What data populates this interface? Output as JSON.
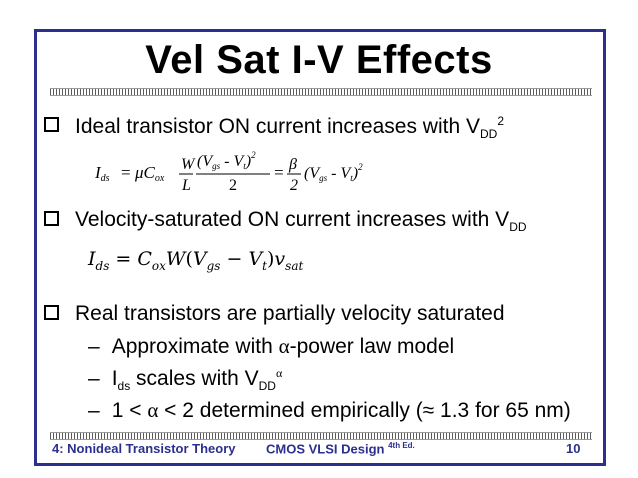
{
  "title": "Vel Sat I-V Effects",
  "bullets": [
    {
      "text": "Ideal transistor ON current increases with V",
      "sub": "DD",
      "sup": "2"
    },
    {
      "text": "Velocity-saturated ON current increases with V",
      "sub": "DD"
    },
    {
      "text": "Real transistors are partially velocity saturated"
    }
  ],
  "sub_bullets": [
    {
      "dash": "–",
      "pre": "Approximate with ",
      "greek": "α",
      "post": "-power law model"
    },
    {
      "dash": "–",
      "pre": "I",
      "sub": "ds",
      "mid": " scales with V",
      "sub2": "DD",
      "sup": "α"
    },
    {
      "dash": "–",
      "pre": "1 < ",
      "greek": "α",
      "post": " < 2 determined empirically (≈ 1.3 for 65 nm)"
    }
  ],
  "equation1": {
    "lhs": "I",
    "lhs_sub": "ds",
    "eq": "=",
    "mu": "μC",
    "mu_sub": "ox",
    "w": "W",
    "l": "L",
    "num": "(V",
    "gs": "gs",
    "minus": " - ",
    "vt": "V",
    "t": "t",
    "close": ")",
    "sq": "2",
    "den": "2",
    "beta": "β",
    "den2": "2"
  },
  "equation2": {
    "lhs": "I",
    "lhs_sub": "ds",
    "eq": " = ",
    "c": "C",
    "c_sub": "ox",
    "w": "W",
    "open": "(",
    "v1": "V",
    "v1_sub": "gs",
    "minus": " − ",
    "v2": "V",
    "v2_sub": "t",
    "close": ")",
    "v3": "v",
    "v3_sub": "sat"
  },
  "footer": {
    "left": "4: Nonideal Transistor Theory",
    "center": "CMOS VLSI Design",
    "center_sup": "4th Ed.",
    "page": "10"
  }
}
